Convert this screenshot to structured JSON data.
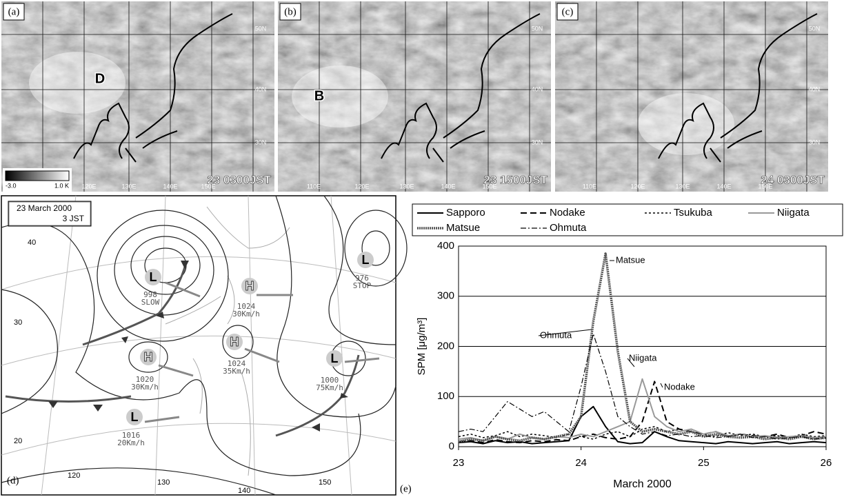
{
  "panels": [
    {
      "label": "(a)",
      "marker": "D",
      "time": "23 0300JST",
      "lat_labels": [
        "50N",
        "40N",
        "30N"
      ],
      "lon_labels": [
        "120E",
        "130E",
        "140E",
        "150E"
      ]
    },
    {
      "label": "(b)",
      "marker": "B",
      "time": "23 1500JST",
      "lat_labels": [
        "50N",
        "40N",
        "30N"
      ],
      "lon_labels": [
        "110E",
        "120E",
        "130E",
        "140E",
        "150E"
      ]
    },
    {
      "label": "(c)",
      "time": "24 0300JST",
      "lat_labels": [
        "50N",
        "40N",
        "30N"
      ],
      "lon_labels": [
        "110E",
        "120E",
        "130E",
        "140E",
        "150E"
      ]
    }
  ],
  "colorbar": {
    "min_label": "-3.0",
    "max_label": "1.0 K"
  },
  "weather_map": {
    "label": "(d)",
    "box": [
      "23 March 2000",
      "3 JST"
    ],
    "systems": [
      {
        "symbol": "L",
        "pressure": "998",
        "motion": "SLOW"
      },
      {
        "symbol": "H",
        "pressure": "1024",
        "motion": "30Km/h"
      },
      {
        "symbol": "H",
        "pressure": "1024",
        "motion": "35Km/h"
      },
      {
        "symbol": "H",
        "pressure": "1020",
        "motion": "30Km/h"
      },
      {
        "symbol": "L",
        "pressure": "1016",
        "motion": "20Km/h"
      },
      {
        "symbol": "L",
        "pressure": "1000",
        "motion": "75Km/h"
      },
      {
        "symbol": "L",
        "pressure": "976",
        "motion": "STOP"
      }
    ],
    "lat_labels": [
      "40",
      "30",
      "20"
    ],
    "lon_labels": [
      "120",
      "130",
      "140",
      "150"
    ]
  },
  "chart_data": {
    "type": "line",
    "panel_label": "(e)",
    "x_label": "March 2000",
    "y_label": "SPM [μg/m³]",
    "xlim": [
      23,
      26
    ],
    "xticks": [
      23,
      24,
      25,
      26
    ],
    "ylim": [
      0,
      400
    ],
    "yticks": [
      0,
      100,
      200,
      300,
      400
    ],
    "grid": true,
    "x": [
      23.0,
      23.1,
      23.2,
      23.3,
      23.4,
      23.5,
      23.6,
      23.7,
      23.8,
      23.9,
      24.0,
      24.1,
      24.2,
      24.3,
      24.4,
      24.5,
      24.6,
      24.7,
      24.8,
      24.9,
      25.0,
      25.1,
      25.2,
      25.3,
      25.4,
      25.5,
      25.6,
      25.7,
      25.8,
      25.9,
      26.0
    ],
    "series": [
      {
        "name": "Sapporo",
        "color": "#000000",
        "dash": "none",
        "width": 2,
        "values": [
          8,
          10,
          6,
          12,
          8,
          10,
          6,
          8,
          10,
          12,
          60,
          80,
          40,
          10,
          6,
          8,
          30,
          20,
          12,
          10,
          8,
          6,
          10,
          8,
          6,
          8,
          10,
          6,
          8,
          10,
          8
        ]
      },
      {
        "name": "Nodake",
        "color": "#000000",
        "dash": "9 5",
        "width": 2,
        "values": [
          10,
          12,
          8,
          14,
          10,
          8,
          12,
          10,
          14,
          12,
          20,
          25,
          18,
          15,
          20,
          50,
          130,
          50,
          35,
          30,
          25,
          30,
          20,
          25,
          22,
          20,
          25,
          18,
          22,
          30,
          25
        ]
      },
      {
        "name": "Tsukuba",
        "color": "#000000",
        "dash": "3 3",
        "width": 1.5,
        "values": [
          20,
          25,
          18,
          22,
          30,
          20,
          25,
          22,
          18,
          25,
          20,
          15,
          25,
          30,
          20,
          35,
          40,
          30,
          35,
          30,
          25,
          20,
          28,
          22,
          25,
          20,
          22,
          18,
          25,
          20,
          22
        ]
      },
      {
        "name": "Niigata",
        "color": "#999999",
        "dash": "none",
        "width": 2,
        "values": [
          15,
          18,
          12,
          20,
          15,
          25,
          18,
          15,
          20,
          18,
          25,
          20,
          30,
          40,
          50,
          135,
          60,
          40,
          30,
          35,
          25,
          30,
          22,
          25,
          20,
          22,
          18,
          20,
          22,
          18,
          20
        ]
      },
      {
        "name": "Matsue",
        "color": "#555555",
        "dash": "2 1",
        "width": 3.5,
        "values": [
          10,
          15,
          12,
          20,
          15,
          12,
          18,
          15,
          20,
          25,
          60,
          250,
          385,
          190,
          50,
          30,
          35,
          30,
          25,
          30,
          20,
          25,
          20,
          18,
          20,
          15,
          18,
          15,
          20,
          15,
          18
        ]
      },
      {
        "name": "Ohmuta",
        "color": "#000000",
        "dash": "8 3 2 3",
        "width": 1.2,
        "values": [
          30,
          35,
          30,
          60,
          90,
          75,
          60,
          70,
          50,
          30,
          120,
          225,
          150,
          60,
          40,
          25,
          30,
          22,
          25,
          20,
          22,
          18,
          20,
          25,
          18,
          20,
          15,
          18,
          20,
          15,
          18
        ]
      }
    ],
    "annotations": [
      "Matsue",
      "Ohmuta",
      "Niigata",
      "Nodake"
    ]
  }
}
